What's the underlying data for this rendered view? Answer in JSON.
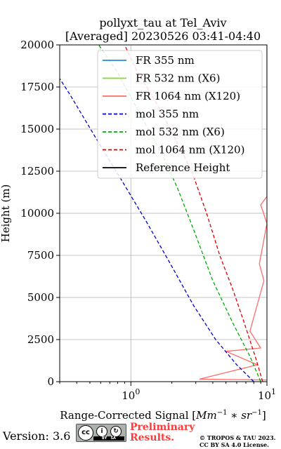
{
  "chart_data": {
    "type": "line",
    "title": "pollyxt_tau at Tel_Aviv",
    "subtitle": "[Averaged] 20230526 03:41-04:40",
    "xlabel": "Range-Corrected Signal [",
    "xlabel_math": "Mm",
    "xlabel_math_sup": "−1",
    "xlabel_math_mid": " ∗ sr",
    "xlabel_math_sup2": "−1",
    "xlabel_close": "]",
    "ylabel": "Height (m)",
    "xscale": "log",
    "xlim": [
      0.3,
      10
    ],
    "ylim": [
      0,
      20000
    ],
    "grid": true,
    "legend_position": "top-right",
    "x_tick_labels": [
      {
        "value": 1,
        "base": "10",
        "exp": "0"
      },
      {
        "value": 10,
        "base": "10",
        "exp": "1"
      }
    ],
    "y_ticks": [
      0,
      2500,
      5000,
      7500,
      10000,
      12500,
      15000,
      17500,
      20000
    ],
    "y_tick_labels": [
      "0",
      "2500",
      "5000",
      "7500",
      "10000",
      "12500",
      "15000",
      "17500",
      "20000"
    ],
    "series": [
      {
        "name": "FR 355 nm",
        "color": "#1f8fd8",
        "style": "solid",
        "x": [],
        "y": []
      },
      {
        "name": "FR 532 nm (X6)",
        "color": "#7fdd2a",
        "style": "solid",
        "x": [],
        "y": []
      },
      {
        "name": "FR 1064 nm (X120)",
        "color": "#ff6a6a",
        "style": "solid",
        "x": [
          10,
          3.2,
          8.5,
          5.0,
          9.0,
          7.5,
          9.5,
          8.8,
          10,
          9.0,
          10,
          10,
          10,
          10,
          10,
          10,
          10,
          10,
          10,
          10,
          10
        ],
        "y": [
          100,
          150,
          1000,
          1800,
          2000,
          3000,
          6000,
          7000,
          9400,
          10500,
          11000,
          12000,
          13000,
          14000,
          15000,
          16000,
          17000,
          18000,
          19000,
          19500,
          20000
        ]
      },
      {
        "name": "mol 355 nm",
        "color": "#0000cc",
        "style": "dashed",
        "x": [
          8.0,
          6.0,
          4.2,
          2.9,
          1.95,
          1.3,
          0.85,
          0.55,
          0.36,
          0.3
        ],
        "y": [
          0,
          1000,
          2500,
          4500,
          7000,
          9500,
          12000,
          14500,
          17000,
          18000
        ]
      },
      {
        "name": "mol 532 nm (X6)",
        "color": "#00aa00",
        "style": "dashed",
        "x": [
          9.0,
          7.5,
          5.6,
          4.0,
          2.9,
          2.2,
          1.7,
          1.15,
          0.78,
          0.58
        ],
        "y": [
          0,
          1500,
          3500,
          6000,
          9000,
          11500,
          13500,
          16000,
          18500,
          20000
        ]
      },
      {
        "name": "mol 1064 nm (X120)",
        "color": "#dd0000",
        "style": "dashed",
        "x": [
          9.3,
          8.2,
          6.8,
          5.6,
          4.5,
          3.6,
          2.8,
          2.1,
          1.55,
          1.1,
          0.9
        ],
        "y": [
          0,
          1500,
          3500,
          5500,
          7500,
          10000,
          12500,
          14500,
          16500,
          18500,
          20000
        ]
      },
      {
        "name": "Reference Height",
        "color": "#000000",
        "style": "solid",
        "x": [],
        "y": []
      }
    ]
  },
  "footer": {
    "version": "Version: 3.6",
    "license_badge": {
      "by": "BY",
      "sa": "SA"
    },
    "preliminary_line1": "Preliminary",
    "preliminary_line2": "Results.",
    "copyright_line1": "© TROPOS & TAU 2023.",
    "copyright_line2": "CC BY SA 4.0 License."
  }
}
